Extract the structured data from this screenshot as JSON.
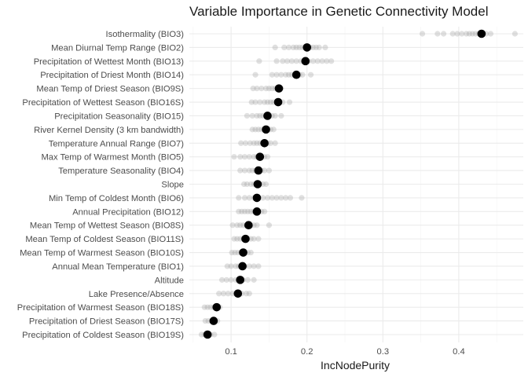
{
  "chart_data": {
    "type": "scatter",
    "title": "Variable Importance in Genetic Connectivity Model",
    "xlabel": "IncNodePurity",
    "ylabel": "",
    "xlim": [
      0.045,
      0.485
    ],
    "xticks": [
      0.1,
      0.2,
      0.3,
      0.4
    ],
    "xtick_labels": [
      "0.1",
      "0.2",
      "0.3",
      "0.4"
    ],
    "grid": true,
    "legend": "none",
    "colors": {
      "mean": "#000000",
      "replicate": "#9e9e9e"
    },
    "variables": [
      {
        "label": "Isothermality (BIO3)",
        "mean": 0.43,
        "reps": [
          0.352,
          0.372,
          0.38,
          0.392,
          0.398,
          0.404,
          0.41,
          0.414,
          0.418,
          0.422,
          0.426,
          0.432,
          0.436,
          0.442,
          0.474
        ]
      },
      {
        "label": "Mean Diurnal Temp Range (BIO2)",
        "mean": 0.2,
        "reps": [
          0.158,
          0.17,
          0.176,
          0.182,
          0.186,
          0.19,
          0.194,
          0.198,
          0.204,
          0.208,
          0.212,
          0.216,
          0.224
        ]
      },
      {
        "label": "Precipitation of Wettest Month (BIO13)",
        "mean": 0.198,
        "reps": [
          0.137,
          0.16,
          0.168,
          0.174,
          0.18,
          0.186,
          0.192,
          0.202,
          0.208,
          0.214,
          0.22,
          0.226,
          0.232
        ]
      },
      {
        "label": "Precipitation of Driest Month (BIO14)",
        "mean": 0.186,
        "reps": [
          0.132,
          0.154,
          0.16,
          0.166,
          0.172,
          0.176,
          0.18,
          0.184,
          0.19,
          0.194,
          0.205
        ]
      },
      {
        "label": "Mean Temp of Driest Season (BIO9S)",
        "mean": 0.163,
        "reps": [
          0.129,
          0.134,
          0.14,
          0.146,
          0.15,
          0.154,
          0.158,
          0.162,
          0.166
        ]
      },
      {
        "label": "Precipitation of Wettest Season (BIO16S)",
        "mean": 0.162,
        "reps": [
          0.127,
          0.132,
          0.138,
          0.144,
          0.148,
          0.152,
          0.156,
          0.16,
          0.164,
          0.168,
          0.177
        ]
      },
      {
        "label": "Precipitation Seasonality (BIO15)",
        "mean": 0.148,
        "reps": [
          0.121,
          0.128,
          0.134,
          0.138,
          0.142,
          0.146,
          0.15,
          0.154,
          0.158,
          0.166
        ]
      },
      {
        "label": "River Kernel Density (3 km bandwidth)",
        "mean": 0.146,
        "reps": [
          0.128,
          0.132,
          0.136,
          0.14,
          0.144,
          0.148,
          0.152,
          0.156
        ]
      },
      {
        "label": "Temperature Annual Range (BIO7)",
        "mean": 0.144,
        "reps": [
          0.113,
          0.119,
          0.125,
          0.13,
          0.134,
          0.138,
          0.142,
          0.148,
          0.152,
          0.158
        ]
      },
      {
        "label": "Max Temp of Warmest Month (BIO5)",
        "mean": 0.138,
        "reps": [
          0.104,
          0.112,
          0.118,
          0.124,
          0.13,
          0.134,
          0.14,
          0.144,
          0.148
        ]
      },
      {
        "label": "Temperature Seasonality (BIO4)",
        "mean": 0.136,
        "reps": [
          0.112,
          0.118,
          0.124,
          0.128,
          0.132,
          0.136,
          0.14,
          0.144,
          0.15
        ]
      },
      {
        "label": "Slope",
        "mean": 0.135,
        "reps": [
          0.117,
          0.121,
          0.126,
          0.13,
          0.134,
          0.138,
          0.142,
          0.146
        ]
      },
      {
        "label": "Min Temp of Coldest Month (BIO6)",
        "mean": 0.134,
        "reps": [
          0.11,
          0.118,
          0.124,
          0.13,
          0.136,
          0.142,
          0.148,
          0.154,
          0.16,
          0.166,
          0.172,
          0.178,
          0.193
        ]
      },
      {
        "label": "Annual Precipitation (BIO12)",
        "mean": 0.134,
        "reps": [
          0.11,
          0.114,
          0.118,
          0.122,
          0.126,
          0.13,
          0.136,
          0.14,
          0.144
        ]
      },
      {
        "label": "Mean Temp of Wettest Season (BIO8S)",
        "mean": 0.123,
        "reps": [
          0.102,
          0.108,
          0.112,
          0.116,
          0.12,
          0.126,
          0.13,
          0.134,
          0.15
        ]
      },
      {
        "label": "Mean Temp of Coldest Season (BIO11S)",
        "mean": 0.119,
        "reps": [
          0.104,
          0.108,
          0.112,
          0.116,
          0.122,
          0.126,
          0.13,
          0.136
        ]
      },
      {
        "label": "Mean Temp of Warmest Season (BIO10S)",
        "mean": 0.116,
        "reps": [
          0.101,
          0.105,
          0.109,
          0.113,
          0.118,
          0.122,
          0.126
        ]
      },
      {
        "label": "Annual Mean Temperature (BIO1)",
        "mean": 0.115,
        "reps": [
          0.095,
          0.1,
          0.106,
          0.11,
          0.114,
          0.118,
          0.124,
          0.13,
          0.136
        ]
      },
      {
        "label": "Altitude",
        "mean": 0.112,
        "reps": [
          0.088,
          0.094,
          0.1,
          0.106,
          0.11,
          0.116,
          0.122,
          0.13
        ]
      },
      {
        "label": "Lake Presence/Absence",
        "mean": 0.109,
        "reps": [
          0.084,
          0.09,
          0.096,
          0.102,
          0.108,
          0.114,
          0.12,
          0.124
        ]
      },
      {
        "label": "Precipitation of Warmest Season (BIO18S)",
        "mean": 0.081,
        "reps": [
          0.065,
          0.069,
          0.073,
          0.077,
          0.081,
          0.085
        ]
      },
      {
        "label": "Precipitation of Driest Season (BIO17S)",
        "mean": 0.077,
        "reps": [
          0.066,
          0.07,
          0.074,
          0.078,
          0.082
        ]
      },
      {
        "label": "Precipitation of Coldest Season (BIO19S)",
        "mean": 0.069,
        "reps": [
          0.061,
          0.065,
          0.069,
          0.073,
          0.078
        ]
      }
    ]
  }
}
